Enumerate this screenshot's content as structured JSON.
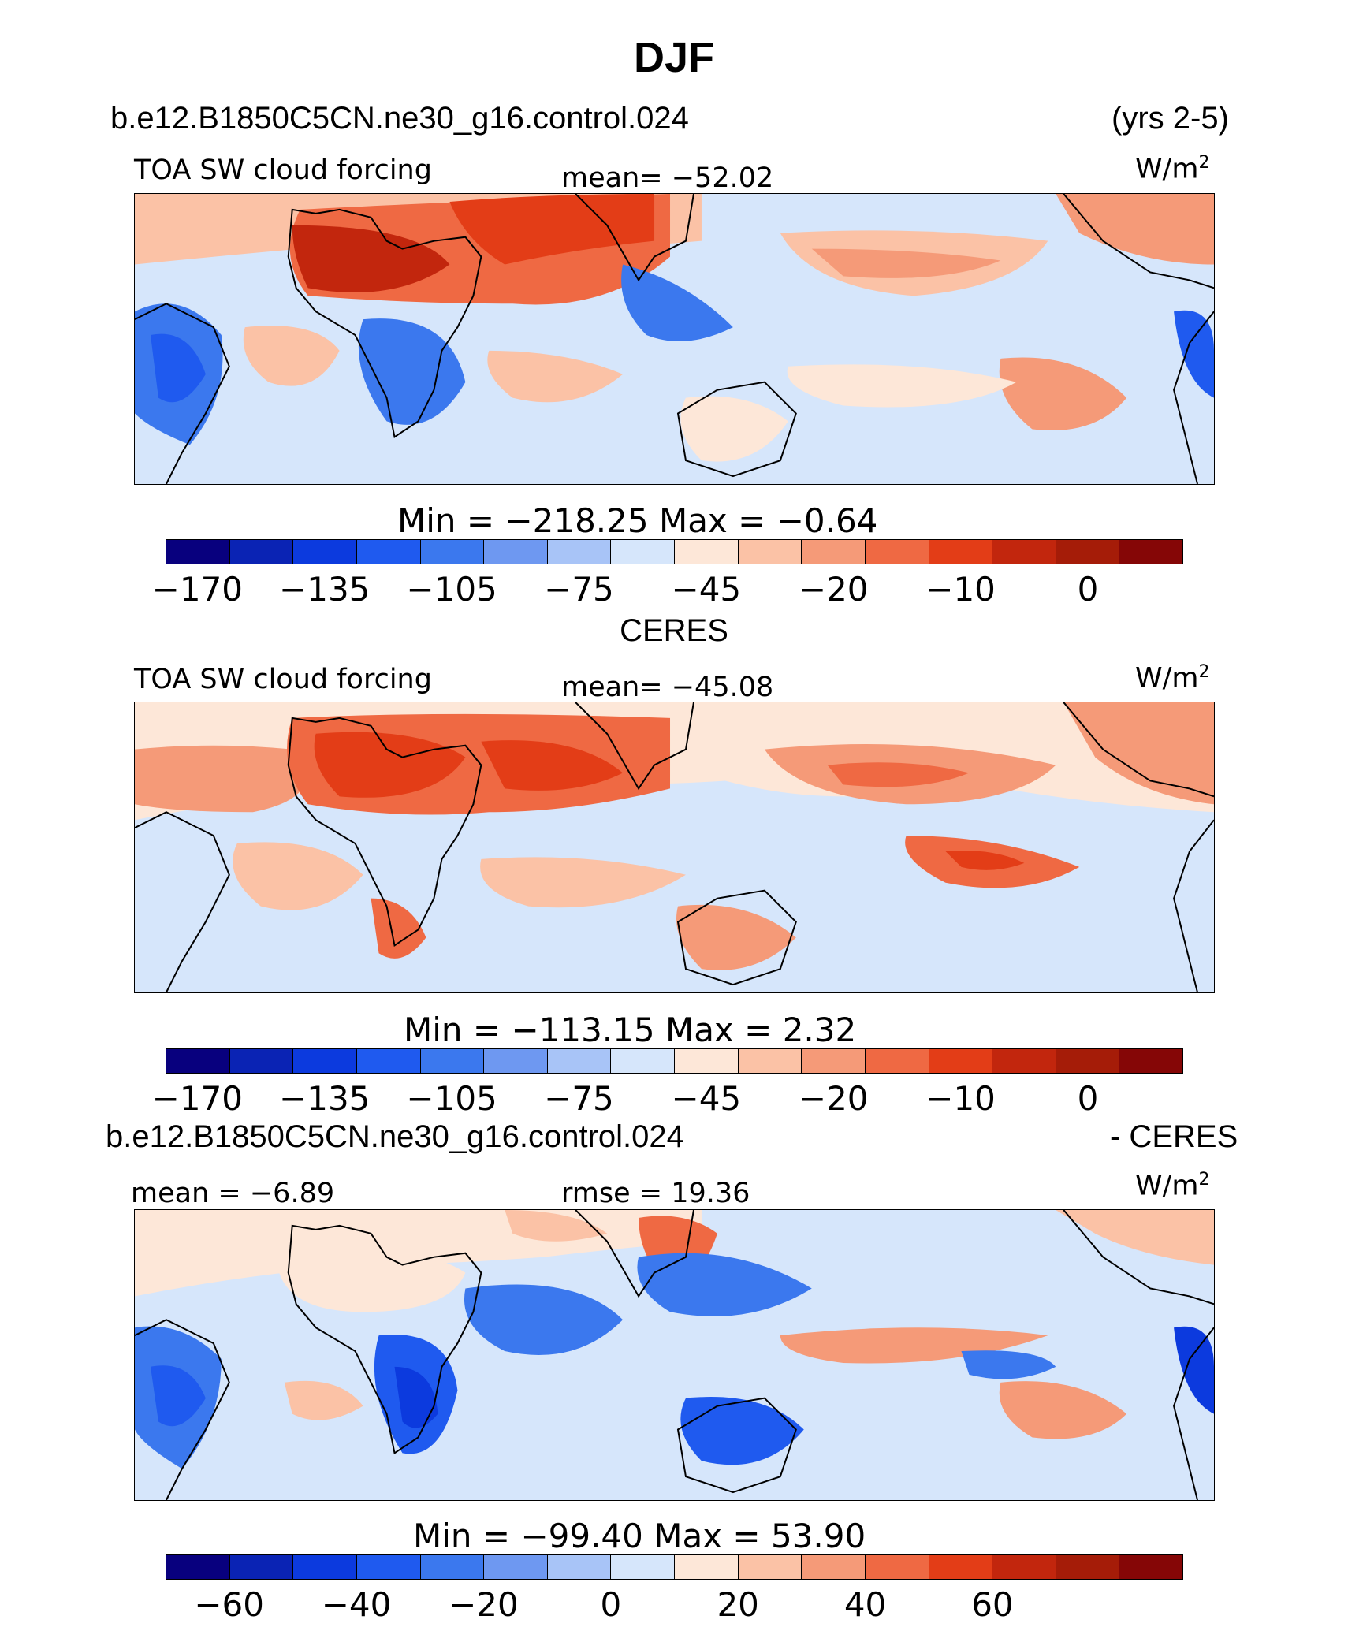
{
  "title": "DJF",
  "case_name": "b.e12.B1850C5CN.ne30_g16.control.024",
  "years": "(yrs 2-5)",
  "obs_name": "CERES",
  "diff_case": "b.e12.B1850C5CN.ne30_g16.control.024",
  "diff_suffix": "- CERES",
  "units": "W/m",
  "units_sup": "2",
  "variable": "TOA SW cloud forcing",
  "colors": {
    "palette": [
      "#08007e",
      "#0a23b4",
      "#0c3ade",
      "#1f5aef",
      "#3b78ee",
      "#6e98f1",
      "#a8c4f7",
      "#d6e6fb",
      "#fde7d8",
      "#fbc2a6",
      "#f59a78",
      "#ef6943",
      "#e33d17",
      "#c2260d",
      "#a51c08",
      "#850606"
    ]
  },
  "chart_data": [
    {
      "type": "heatmap",
      "panel": "model",
      "title": "b.e12.B1850C5CN.ne30_g16.control.024",
      "left_label": "TOA SW cloud forcing",
      "mean_label": "mean=",
      "mean": "−52.02",
      "min_label": "Min  =",
      "min": "−218.25",
      "max_label": "Max  =",
      "max": "−0.64",
      "colorbar_ticks": [
        "−170",
        "−135",
        "−105",
        "−75",
        "−45",
        "−20",
        "−10",
        "0"
      ]
    },
    {
      "type": "heatmap",
      "panel": "obs",
      "title": "CERES",
      "left_label": "TOA SW cloud forcing",
      "mean_label": "mean=",
      "mean": "−45.08",
      "min_label": "Min  =",
      "min": "−113.15",
      "max_label": "Max  =",
      "max": "2.32",
      "colorbar_ticks": [
        "−170",
        "−135",
        "−105",
        "−75",
        "−45",
        "−20",
        "−10",
        "0"
      ]
    },
    {
      "type": "heatmap",
      "panel": "difference",
      "title": "b.e12.B1850C5CN.ne30_g16.control.024 - CERES",
      "mean_label": "mean =",
      "mean": "−6.89",
      "rmse_label": "rmse =",
      "rmse": "19.36",
      "min_label": "Min  =",
      "min": "−99.40",
      "max_label": "Max  =",
      "max": "53.90",
      "colorbar_ticks": [
        "−60",
        "−40",
        "−20",
        "0",
        "20",
        "40",
        "60"
      ]
    }
  ]
}
